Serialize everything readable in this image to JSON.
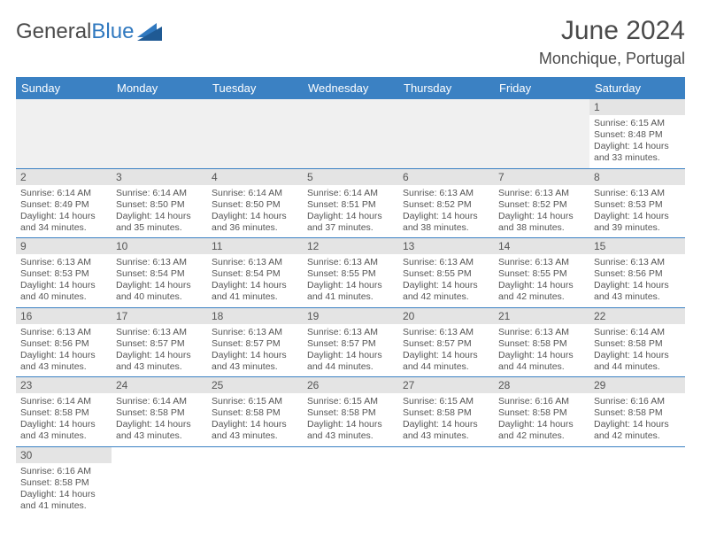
{
  "brand": {
    "part1": "General",
    "part2": "Blue"
  },
  "title": "June 2024",
  "location": "Monchique, Portugal",
  "colors": {
    "header_bg": "#3b81c3",
    "header_text": "#ffffff",
    "daynum_bg": "#e4e4e4",
    "empty_bg": "#f0f0f0",
    "border": "#3b81c3",
    "text": "#555555",
    "brand_blue": "#2f78bf"
  },
  "weekdays": [
    "Sunday",
    "Monday",
    "Tuesday",
    "Wednesday",
    "Thursday",
    "Friday",
    "Saturday"
  ],
  "weeks": [
    [
      null,
      null,
      null,
      null,
      null,
      null,
      {
        "n": "1",
        "sr": "Sunrise: 6:15 AM",
        "ss": "Sunset: 8:48 PM",
        "d1": "Daylight: 14 hours",
        "d2": "and 33 minutes."
      }
    ],
    [
      {
        "n": "2",
        "sr": "Sunrise: 6:14 AM",
        "ss": "Sunset: 8:49 PM",
        "d1": "Daylight: 14 hours",
        "d2": "and 34 minutes."
      },
      {
        "n": "3",
        "sr": "Sunrise: 6:14 AM",
        "ss": "Sunset: 8:50 PM",
        "d1": "Daylight: 14 hours",
        "d2": "and 35 minutes."
      },
      {
        "n": "4",
        "sr": "Sunrise: 6:14 AM",
        "ss": "Sunset: 8:50 PM",
        "d1": "Daylight: 14 hours",
        "d2": "and 36 minutes."
      },
      {
        "n": "5",
        "sr": "Sunrise: 6:14 AM",
        "ss": "Sunset: 8:51 PM",
        "d1": "Daylight: 14 hours",
        "d2": "and 37 minutes."
      },
      {
        "n": "6",
        "sr": "Sunrise: 6:13 AM",
        "ss": "Sunset: 8:52 PM",
        "d1": "Daylight: 14 hours",
        "d2": "and 38 minutes."
      },
      {
        "n": "7",
        "sr": "Sunrise: 6:13 AM",
        "ss": "Sunset: 8:52 PM",
        "d1": "Daylight: 14 hours",
        "d2": "and 38 minutes."
      },
      {
        "n": "8",
        "sr": "Sunrise: 6:13 AM",
        "ss": "Sunset: 8:53 PM",
        "d1": "Daylight: 14 hours",
        "d2": "and 39 minutes."
      }
    ],
    [
      {
        "n": "9",
        "sr": "Sunrise: 6:13 AM",
        "ss": "Sunset: 8:53 PM",
        "d1": "Daylight: 14 hours",
        "d2": "and 40 minutes."
      },
      {
        "n": "10",
        "sr": "Sunrise: 6:13 AM",
        "ss": "Sunset: 8:54 PM",
        "d1": "Daylight: 14 hours",
        "d2": "and 40 minutes."
      },
      {
        "n": "11",
        "sr": "Sunrise: 6:13 AM",
        "ss": "Sunset: 8:54 PM",
        "d1": "Daylight: 14 hours",
        "d2": "and 41 minutes."
      },
      {
        "n": "12",
        "sr": "Sunrise: 6:13 AM",
        "ss": "Sunset: 8:55 PM",
        "d1": "Daylight: 14 hours",
        "d2": "and 41 minutes."
      },
      {
        "n": "13",
        "sr": "Sunrise: 6:13 AM",
        "ss": "Sunset: 8:55 PM",
        "d1": "Daylight: 14 hours",
        "d2": "and 42 minutes."
      },
      {
        "n": "14",
        "sr": "Sunrise: 6:13 AM",
        "ss": "Sunset: 8:55 PM",
        "d1": "Daylight: 14 hours",
        "d2": "and 42 minutes."
      },
      {
        "n": "15",
        "sr": "Sunrise: 6:13 AM",
        "ss": "Sunset: 8:56 PM",
        "d1": "Daylight: 14 hours",
        "d2": "and 43 minutes."
      }
    ],
    [
      {
        "n": "16",
        "sr": "Sunrise: 6:13 AM",
        "ss": "Sunset: 8:56 PM",
        "d1": "Daylight: 14 hours",
        "d2": "and 43 minutes."
      },
      {
        "n": "17",
        "sr": "Sunrise: 6:13 AM",
        "ss": "Sunset: 8:57 PM",
        "d1": "Daylight: 14 hours",
        "d2": "and 43 minutes."
      },
      {
        "n": "18",
        "sr": "Sunrise: 6:13 AM",
        "ss": "Sunset: 8:57 PM",
        "d1": "Daylight: 14 hours",
        "d2": "and 43 minutes."
      },
      {
        "n": "19",
        "sr": "Sunrise: 6:13 AM",
        "ss": "Sunset: 8:57 PM",
        "d1": "Daylight: 14 hours",
        "d2": "and 44 minutes."
      },
      {
        "n": "20",
        "sr": "Sunrise: 6:13 AM",
        "ss": "Sunset: 8:57 PM",
        "d1": "Daylight: 14 hours",
        "d2": "and 44 minutes."
      },
      {
        "n": "21",
        "sr": "Sunrise: 6:13 AM",
        "ss": "Sunset: 8:58 PM",
        "d1": "Daylight: 14 hours",
        "d2": "and 44 minutes."
      },
      {
        "n": "22",
        "sr": "Sunrise: 6:14 AM",
        "ss": "Sunset: 8:58 PM",
        "d1": "Daylight: 14 hours",
        "d2": "and 44 minutes."
      }
    ],
    [
      {
        "n": "23",
        "sr": "Sunrise: 6:14 AM",
        "ss": "Sunset: 8:58 PM",
        "d1": "Daylight: 14 hours",
        "d2": "and 43 minutes."
      },
      {
        "n": "24",
        "sr": "Sunrise: 6:14 AM",
        "ss": "Sunset: 8:58 PM",
        "d1": "Daylight: 14 hours",
        "d2": "and 43 minutes."
      },
      {
        "n": "25",
        "sr": "Sunrise: 6:15 AM",
        "ss": "Sunset: 8:58 PM",
        "d1": "Daylight: 14 hours",
        "d2": "and 43 minutes."
      },
      {
        "n": "26",
        "sr": "Sunrise: 6:15 AM",
        "ss": "Sunset: 8:58 PM",
        "d1": "Daylight: 14 hours",
        "d2": "and 43 minutes."
      },
      {
        "n": "27",
        "sr": "Sunrise: 6:15 AM",
        "ss": "Sunset: 8:58 PM",
        "d1": "Daylight: 14 hours",
        "d2": "and 43 minutes."
      },
      {
        "n": "28",
        "sr": "Sunrise: 6:16 AM",
        "ss": "Sunset: 8:58 PM",
        "d1": "Daylight: 14 hours",
        "d2": "and 42 minutes."
      },
      {
        "n": "29",
        "sr": "Sunrise: 6:16 AM",
        "ss": "Sunset: 8:58 PM",
        "d1": "Daylight: 14 hours",
        "d2": "and 42 minutes."
      }
    ],
    [
      {
        "n": "30",
        "sr": "Sunrise: 6:16 AM",
        "ss": "Sunset: 8:58 PM",
        "d1": "Daylight: 14 hours",
        "d2": "and 41 minutes."
      },
      null,
      null,
      null,
      null,
      null,
      null
    ]
  ]
}
